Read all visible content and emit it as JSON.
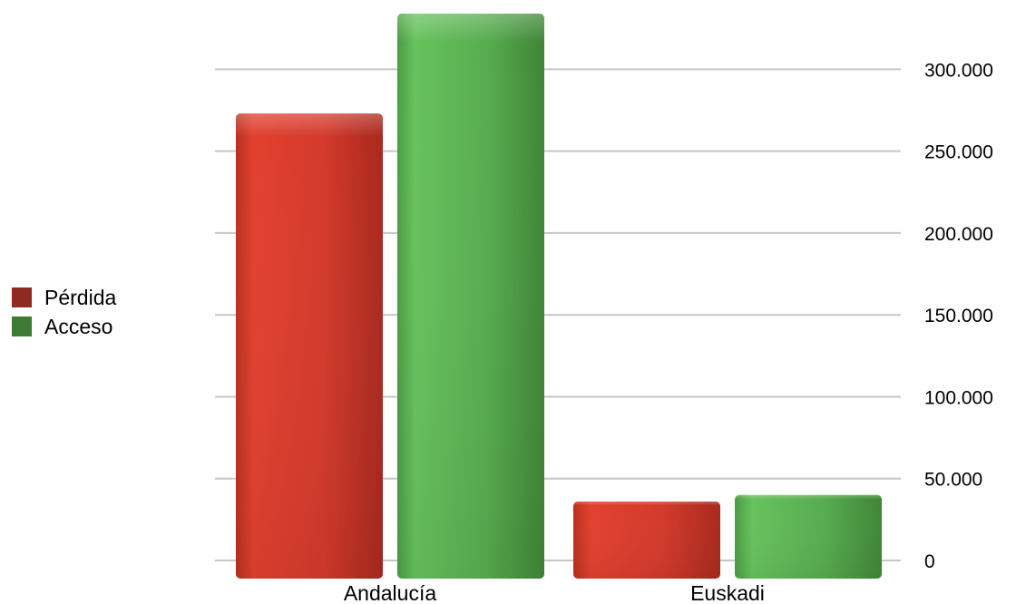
{
  "chart_data": {
    "type": "bar",
    "title": "",
    "xlabel": "",
    "ylabel": "",
    "categories": [
      "Andalucía",
      "Euskadi"
    ],
    "series": [
      {
        "name": "Pérdida",
        "values": [
          273000,
          36000
        ],
        "color": "#d63b2c"
      },
      {
        "name": "Acceso",
        "values": [
          334000,
          40000
        ],
        "color": "#5cb554"
      }
    ],
    "ylim": [
      0,
      334000
    ],
    "yticks": [
      0,
      50000,
      100000,
      150000,
      200000,
      250000,
      300000
    ],
    "ytick_labels": [
      "0",
      "50.000",
      "100.000",
      "150.000",
      "200.000",
      "250.000",
      "300.000"
    ],
    "y_axis_side": "right",
    "grid": true,
    "legend_position": "left",
    "legend_colors": {
      "Pérdida": "#8e2a1f",
      "Acceso": "#3d7a34"
    }
  }
}
